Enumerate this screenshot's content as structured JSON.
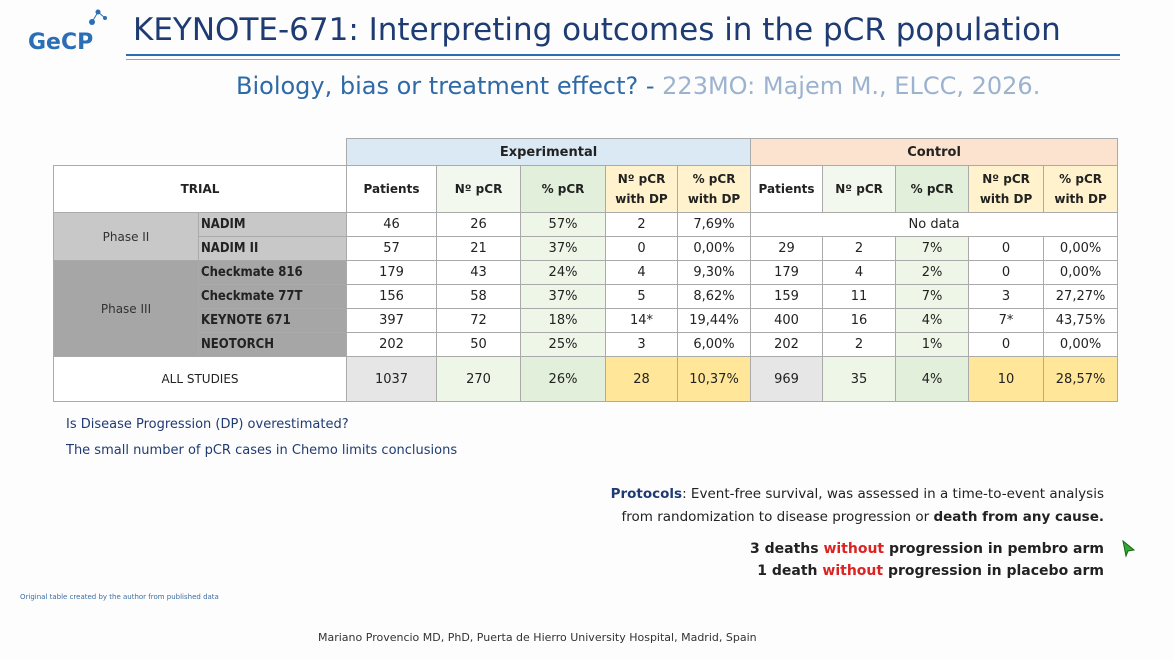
{
  "header": {
    "logo": "GeCP",
    "title": "KEYNOTE-671: Interpreting outcomes in the pCR population",
    "subtitle": "Biology, bias or treatment effect? -",
    "reference": "223MO: Majem M., ELCC, 2026."
  },
  "table": {
    "experimental_label": "Experimental",
    "control_label": "Control",
    "trial_header": "TRIAL",
    "column_headers": [
      "Patients",
      "Nº pCR",
      "% pCR",
      "Nº pCR with DP",
      "% pCR with DP",
      "Patients",
      "Nº pCR",
      "% pCR",
      "Nº pCR with DP",
      "% pCR with DP"
    ],
    "groups": [
      {
        "phase": "Phase II",
        "rows": [
          {
            "trial": "NADIM",
            "experimental": [
              "46",
              "26",
              "57%",
              "2",
              "7,69%"
            ],
            "control_note": "No data"
          },
          {
            "trial": "NADIM II",
            "experimental": [
              "57",
              "21",
              "37%",
              "0",
              "0,00%"
            ],
            "control": [
              "29",
              "2",
              "7%",
              "0",
              "0,00%"
            ]
          }
        ]
      },
      {
        "phase": "Phase III",
        "rows": [
          {
            "trial": "Checkmate 816",
            "experimental": [
              "179",
              "43",
              "24%",
              "4",
              "9,30%"
            ],
            "control": [
              "179",
              "4",
              "2%",
              "0",
              "0,00%"
            ]
          },
          {
            "trial": "Checkmate 77T",
            "experimental": [
              "156",
              "58",
              "37%",
              "5",
              "8,62%"
            ],
            "control": [
              "159",
              "11",
              "7%",
              "3",
              "27,27%"
            ]
          },
          {
            "trial": "KEYNOTE 671",
            "experimental": [
              "397",
              "72",
              "18%",
              "14*",
              "19,44%"
            ],
            "control": [
              "400",
              "16",
              "4%",
              "7*",
              "43,75%"
            ]
          },
          {
            "trial": "NEOTORCH",
            "experimental": [
              "202",
              "50",
              "25%",
              "3",
              "6,00%"
            ],
            "control": [
              "202",
              "2",
              "1%",
              "0",
              "0,00%"
            ]
          }
        ]
      }
    ],
    "total": {
      "label": "ALL STUDIES",
      "experimental": [
        "1037",
        "270",
        "26%",
        "28",
        "10,37%"
      ],
      "control": [
        "969",
        "35",
        "4%",
        "10",
        "28,57%"
      ]
    }
  },
  "notes": [
    "Is Disease Progression (DP) overestimated?",
    "The small number of pCR cases in Chemo limits conclusions"
  ],
  "protocols": {
    "line1": [
      "Protocols",
      ": Event-free survival, was assessed in a time-to-event analysis"
    ],
    "line2": [
      "from randomization to disease progression or ",
      "death from any cause."
    ]
  },
  "deaths": [
    [
      "3 deaths ",
      "without",
      " progression in pembro arm"
    ],
    [
      "1 death ",
      "without",
      " progression in placebo arm"
    ]
  ],
  "source_note": "Original table created by the author from published data",
  "footer": "Mariano Provencio MD, PhD, Puerta de Hierro University Hospital, Madrid, Spain"
}
